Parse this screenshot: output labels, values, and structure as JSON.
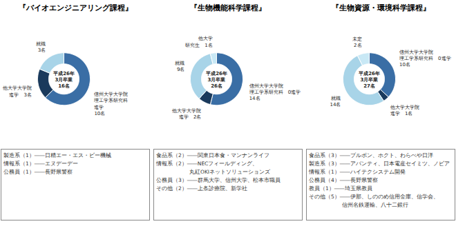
{
  "chart_data": [
    {
      "type": "pie",
      "title": "『バイオエンジニアリング課程』",
      "center_text": [
        "平成26年",
        "3月卒業",
        "16名"
      ],
      "categories": [
        "信州大学大学院\n理工学系研究科\n進学",
        "他大学大学院\n進学　3名",
        "就職\n3名"
      ],
      "values": [
        10,
        3,
        3
      ],
      "value_labels": [
        "10名",
        null,
        null
      ],
      "colors": [
        "#3a6ea5",
        "#1a3a5c",
        "#a8d4e8"
      ],
      "notes": [
        "製造系（1）――日精エー・エス・ビー機械",
        "情報系（1）――エヌデーデー",
        "公務員（1）――長野県警察"
      ]
    },
    {
      "type": "pie",
      "title": "『生物機能科学課程』",
      "center_text": [
        "平成26年",
        "3月卒業",
        "26名"
      ],
      "categories": [
        "信州大学大学院\n理工学系研究科　0進学",
        "他大学大学院\n進学　2名",
        "就職\n9名",
        "他大学\n研究生　1名"
      ],
      "values": [
        14,
        2,
        9,
        1
      ],
      "value_labels": [
        "14名",
        null,
        null,
        null
      ],
      "colors": [
        "#3a6ea5",
        "#1a3a5c",
        "#a8d4e8",
        "#c8e8f5"
      ],
      "notes": [
        "食品系（2）――関東日本食・マンナンライフ",
        "情報系（2）――NECフィールディング、",
        "　　　　　　丸紅OKIネットソリューションズ",
        "公務員（3）――群馬大学、信州大学、松本市職員",
        "その他（2）――上条診療院、新学社"
      ]
    },
    {
      "type": "pie",
      "title": "『生物資源・環境科学課程』",
      "center_text": [
        "平成26年",
        "3月卒業",
        "27名"
      ],
      "categories": [
        "信州大学大学院\n理工学系研究科　0進学",
        "他大学大学院\n進学　1名",
        "就職\n14名",
        "未定\n2名"
      ],
      "values": [
        10,
        1,
        14,
        2
      ],
      "value_labels": [
        "10名",
        null,
        null,
        null
      ],
      "colors": [
        "#3a6ea5",
        "#1a3a5c",
        "#a8d4e8",
        "#c8e8f5"
      ],
      "notes": [
        "食品系（3）――ブルボン、ホクト、わらべや日洋",
        "製造系（3）――アバンティ、日本電産セイミツ、ノビア",
        "情報系（1）――ハイテクシステム開発",
        "公務員（4）――長野県警察",
        "教員（1）――埼玉県教員",
        "その他（5）――伊那、しののめ信用金庫、信学会、",
        "　　　　　　信州名鉄運輸、八十二銀行"
      ]
    }
  ]
}
